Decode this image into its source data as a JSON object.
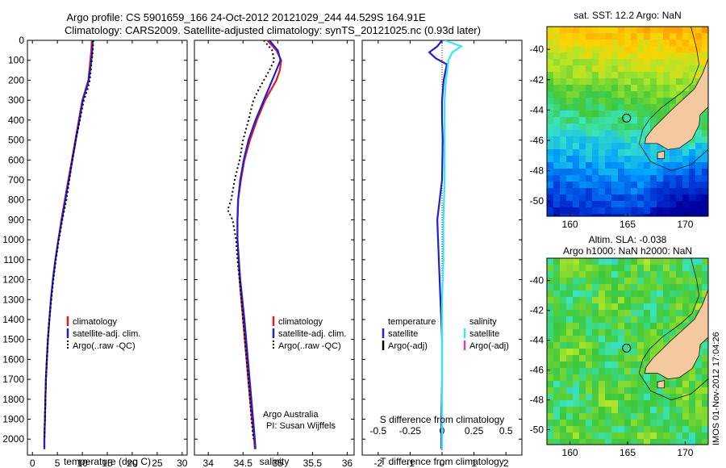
{
  "header": {
    "title_line1": "Argo profile: CS 5901659_166 24-Oct-2012 20121029_244 44.529S 164.91E",
    "title_line2": "Climatology: CARS2009. Satellite-adjusted climatology: synTS_20121025.nc (0.93d later)"
  },
  "colors": {
    "climatology": "#e41a1c",
    "satellite": "#1f1fd6",
    "argo": "#000000",
    "salinity_satellite": "#33e6ff",
    "salinity_argo": "#d63ad6",
    "land": "#f5c9a0"
  },
  "chart_data": [
    {
      "type": "line",
      "name": "temperature-profile",
      "xlabel": "temperature (deg C)",
      "xlim": [
        -1,
        31
      ],
      "xticks": [
        0,
        5,
        10,
        15,
        20,
        25,
        30
      ],
      "ylim": [
        2080,
        0
      ],
      "yticks": [
        0,
        100,
        200,
        300,
        400,
        500,
        600,
        700,
        800,
        900,
        1000,
        1100,
        1200,
        1300,
        1400,
        1500,
        1600,
        1700,
        1800,
        1900,
        2000
      ],
      "legend": [
        "climatology",
        "satellite-adj. clim.",
        "Argo(..raw -QC)"
      ],
      "series": [
        {
          "name": "climatology",
          "depth": [
            0,
            50,
            100,
            200,
            250,
            300,
            400,
            500,
            600,
            700,
            800,
            900,
            1000,
            1100,
            1200,
            1300,
            1400,
            1500,
            1600,
            1700,
            1800,
            1900,
            2000,
            2050
          ],
          "values": [
            11.9,
            11.8,
            11.6,
            11.2,
            10.6,
            10.0,
            9.3,
            8.6,
            7.9,
            7.2,
            6.5,
            5.8,
            5.2,
            4.6,
            4.1,
            3.7,
            3.4,
            3.1,
            2.9,
            2.7,
            2.6,
            2.5,
            2.4,
            2.4
          ]
        },
        {
          "name": "satellite-adj. clim.",
          "depth": [
            0,
            50,
            100,
            200,
            250,
            300,
            400,
            500,
            600,
            700,
            800,
            900,
            1000,
            1100,
            1200,
            1300,
            1400,
            1500,
            1600,
            1700,
            1800,
            1900,
            2000,
            2050
          ],
          "values": [
            12.1,
            12.0,
            11.8,
            11.3,
            10.7,
            10.1,
            9.4,
            8.7,
            8.0,
            7.3,
            6.6,
            5.9,
            5.2,
            4.6,
            4.1,
            3.7,
            3.4,
            3.1,
            2.9,
            2.7,
            2.6,
            2.5,
            2.4,
            2.4
          ]
        },
        {
          "name": "Argo(..raw -QC)",
          "depth": [
            0,
            50,
            100,
            200,
            250,
            300,
            400,
            500,
            600,
            700,
            800,
            900,
            1000,
            1100,
            1200,
            1300,
            1400,
            1500,
            1600,
            1700,
            1800,
            1900,
            2000
          ],
          "values": [
            12.2,
            12.1,
            11.9,
            11.5,
            11.0,
            10.3,
            9.5,
            8.7,
            8.0,
            7.4,
            6.8,
            6.0,
            5.3,
            4.7,
            4.2,
            3.8,
            3.4,
            3.1,
            2.9,
            2.7,
            2.6,
            2.5,
            2.4
          ]
        }
      ]
    },
    {
      "type": "line",
      "name": "salinity-profile",
      "xlabel": "salinity",
      "xlim": [
        33.8,
        36.1
      ],
      "xticks": [
        34,
        34.5,
        35,
        35.5,
        36
      ],
      "ylim": [
        2080,
        0
      ],
      "legend": [
        "climatology",
        "satellite-adj. clim.",
        "Argo(..raw -QC)"
      ],
      "annotation": [
        "Argo Australia",
        "PI: Susan Wijffels"
      ],
      "series": [
        {
          "name": "climatology",
          "depth": [
            0,
            50,
            100,
            150,
            200,
            250,
            300,
            400,
            500,
            600,
            700,
            800,
            900,
            1000,
            1200,
            1400,
            1600,
            1800,
            2000,
            2050
          ],
          "values": [
            34.85,
            34.98,
            35.05,
            35.03,
            34.98,
            34.9,
            34.82,
            34.7,
            34.6,
            34.52,
            34.47,
            34.43,
            34.42,
            34.42,
            34.45,
            34.5,
            34.55,
            34.6,
            34.66,
            34.67
          ]
        },
        {
          "name": "satellite-adj. clim.",
          "depth": [
            0,
            50,
            100,
            150,
            200,
            250,
            300,
            400,
            500,
            600,
            700,
            800,
            900,
            1000,
            1200,
            1400,
            1600,
            1800,
            2000,
            2050
          ],
          "values": [
            34.88,
            35.0,
            35.04,
            34.98,
            34.92,
            34.86,
            34.8,
            34.68,
            34.58,
            34.51,
            34.46,
            34.43,
            34.42,
            34.42,
            34.46,
            34.52,
            34.57,
            34.62,
            34.67,
            34.68
          ]
        },
        {
          "name": "Argo(..raw -QC)",
          "depth": [
            0,
            50,
            100,
            150,
            200,
            250,
            300,
            400,
            500,
            600,
            700,
            800,
            850,
            900,
            1000,
            1100,
            1200,
            1400,
            1600,
            1800,
            1900,
            2000
          ],
          "values": [
            34.8,
            34.92,
            34.95,
            34.88,
            34.8,
            34.72,
            34.65,
            34.58,
            34.5,
            34.45,
            34.38,
            34.33,
            34.28,
            34.35,
            34.4,
            34.42,
            34.45,
            34.5,
            34.55,
            34.6,
            34.62,
            34.65
          ]
        }
      ]
    },
    {
      "type": "line",
      "name": "difference-profile",
      "xlabel": "T difference from climatology",
      "xlabel2": "S difference from climatology",
      "xlim": [
        -2.5,
        2.5
      ],
      "xticks": [
        -2,
        -1,
        0,
        1,
        2
      ],
      "xticks2": [
        -0.5,
        -0.25,
        0,
        0.25,
        0.5
      ],
      "ylim": [
        2080,
        0
      ],
      "legend_left_title": "temperature",
      "legend_right_title": "salinity",
      "legend_left": [
        "satellite",
        "Argo(-adj)"
      ],
      "legend_right": [
        "satellite",
        "Argo(-adj)"
      ],
      "series": [
        {
          "name": "temperature satellite",
          "depth": [
            0,
            30,
            60,
            90,
            120,
            200,
            300,
            400,
            500,
            700,
            900,
            1100,
            1300,
            1500,
            1700,
            1900,
            2050
          ],
          "values": [
            0.0,
            -0.15,
            -0.4,
            -0.2,
            0.15,
            0.05,
            0.0,
            0.0,
            0.02,
            0.0,
            -0.15,
            -0.1,
            -0.05,
            0.0,
            0.0,
            -0.02,
            -0.02
          ]
        },
        {
          "name": "salinity satellite",
          "depth": [
            0,
            30,
            60,
            100,
            200,
            300,
            400,
            500,
            700,
            900,
            1100,
            1300,
            1500,
            1700,
            1900,
            2050
          ],
          "values": [
            0.02,
            0.15,
            0.08,
            0.05,
            0.03,
            0.02,
            0.02,
            0.02,
            0.02,
            0.01,
            0.01,
            0.0,
            0.0,
            0.0,
            0.0,
            0.0
          ]
        }
      ]
    },
    {
      "type": "heatmap",
      "name": "sst-map",
      "title": "sat. SST: 12.2 Argo: NaN",
      "xlim": [
        158,
        172
      ],
      "ylim": [
        -51,
        -38.5
      ],
      "xticks": [
        160,
        165,
        170
      ],
      "yticks": [
        -40,
        -42,
        -44,
        -46,
        -48,
        -50
      ],
      "argo_location": [
        164.91,
        -44.529
      ]
    },
    {
      "type": "heatmap",
      "name": "sla-map",
      "title": "Altim. SLA: -0.038",
      "subtitle": "Argo h1000: NaN h2000: NaN",
      "xlim": [
        158,
        172
      ],
      "ylim": [
        -51,
        -38.5
      ],
      "xticks": [
        160,
        165,
        170
      ],
      "yticks": [
        -40,
        -42,
        -44,
        -46,
        -48,
        -50
      ],
      "argo_location": [
        164.91,
        -44.529
      ]
    }
  ],
  "footer": {
    "credit": "IMOS 01-Nov-2012 17:04:26"
  }
}
